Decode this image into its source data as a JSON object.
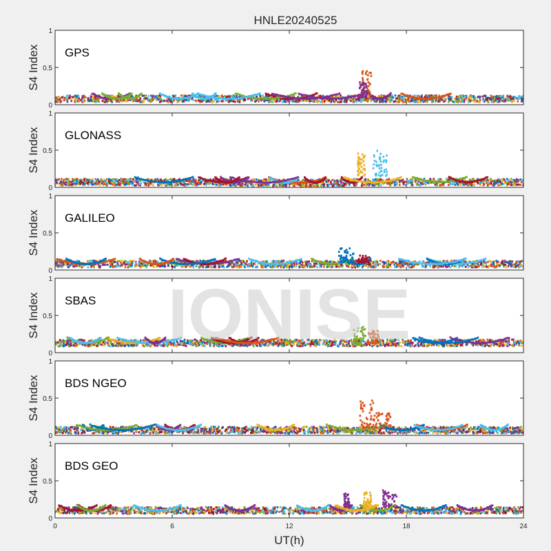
{
  "title": "HNLE20240525",
  "xlabel": "UT(h)",
  "ylabel": "S4 Index",
  "watermark": "IONISE",
  "colors": [
    "#0072bd",
    "#d95319",
    "#edb120",
    "#7e2f8e",
    "#77ac30",
    "#4dbeee",
    "#a2142f"
  ],
  "chart_data": [
    {
      "type": "scatter",
      "panel": "GPS",
      "xlim": [
        0,
        24
      ],
      "ylim": [
        0,
        1
      ],
      "xticks": [
        0,
        6,
        12,
        18,
        24
      ],
      "yticks": [
        0,
        0.5,
        1
      ],
      "baseline": [
        [
          0,
          0.08
        ],
        [
          6,
          0.08
        ],
        [
          12,
          0.08
        ],
        [
          18,
          0.08
        ],
        [
          24,
          0.08
        ]
      ],
      "bursts": [
        {
          "x": [
            15.7,
            16.2
          ],
          "y": [
            0.1,
            0.45
          ],
          "color": 1
        },
        {
          "x": [
            15.6,
            16.0
          ],
          "y": [
            0.1,
            0.3
          ],
          "color": 3
        }
      ]
    },
    {
      "type": "scatter",
      "panel": "GLONASS",
      "xlim": [
        0,
        24
      ],
      "ylim": [
        0,
        1
      ],
      "xticks": [
        0,
        6,
        12,
        18,
        24
      ],
      "yticks": [
        0,
        0.5,
        1
      ],
      "baseline": [
        [
          0,
          0.07
        ],
        [
          6,
          0.07
        ],
        [
          12,
          0.06
        ],
        [
          18,
          0.07
        ],
        [
          24,
          0.07
        ]
      ],
      "bursts": [
        {
          "x": [
            15.5,
            15.9
          ],
          "y": [
            0.15,
            0.48
          ],
          "color": 2
        },
        {
          "x": [
            16.3,
            17.0
          ],
          "y": [
            0.15,
            0.5
          ],
          "color": 5
        }
      ]
    },
    {
      "type": "scatter",
      "panel": "GALILEO",
      "xlim": [
        0,
        24
      ],
      "ylim": [
        0,
        1
      ],
      "xticks": [
        0,
        6,
        12,
        18,
        24
      ],
      "yticks": [
        0,
        0.5,
        1
      ],
      "baseline": [
        [
          0,
          0.08
        ],
        [
          6,
          0.08
        ],
        [
          12,
          0.08
        ],
        [
          18,
          0.08
        ],
        [
          24,
          0.08
        ]
      ],
      "bursts": [
        {
          "x": [
            14.5,
            15.3
          ],
          "y": [
            0.1,
            0.35
          ],
          "color": 0
        },
        {
          "x": [
            15.5,
            16.1
          ],
          "y": [
            0.1,
            0.2
          ],
          "color": 6
        }
      ]
    },
    {
      "type": "scatter",
      "panel": "SBAS",
      "xlim": [
        0,
        24
      ],
      "ylim": [
        0,
        1
      ],
      "xticks": [
        0,
        6,
        12,
        18,
        24
      ],
      "yticks": [
        0,
        0.5,
        1
      ],
      "baseline": [
        [
          0,
          0.13
        ],
        [
          6,
          0.13
        ],
        [
          12,
          0.13
        ],
        [
          18,
          0.13
        ],
        [
          24,
          0.13
        ]
      ],
      "bursts": [
        {
          "x": [
            15.3,
            15.9
          ],
          "y": [
            0.1,
            0.35
          ],
          "color": 4
        },
        {
          "x": [
            16.0,
            16.6
          ],
          "y": [
            0.12,
            0.3
          ],
          "color": 1
        }
      ]
    },
    {
      "type": "scatter",
      "panel": "BDS NGEO",
      "xlim": [
        0,
        24
      ],
      "ylim": [
        0,
        1
      ],
      "xticks": [
        0,
        6,
        12,
        18,
        24
      ],
      "yticks": [
        0,
        0.5,
        1
      ],
      "baseline": [
        [
          0,
          0.07
        ],
        [
          6,
          0.07
        ],
        [
          12,
          0.07
        ],
        [
          18,
          0.07
        ],
        [
          24,
          0.07
        ]
      ],
      "bursts": [
        {
          "x": [
            15.6,
            16.3
          ],
          "y": [
            0.1,
            0.47
          ],
          "color": 1
        },
        {
          "x": [
            16.3,
            17.2
          ],
          "y": [
            0.1,
            0.3
          ],
          "color": 1
        }
      ]
    },
    {
      "type": "scatter",
      "panel": "BDS GEO",
      "xlim": [
        0,
        24
      ],
      "ylim": [
        0,
        1
      ],
      "xticks": [
        0,
        6,
        12,
        18,
        24
      ],
      "yticks": [
        0,
        0.5,
        1
      ],
      "baseline": [
        [
          0,
          0.1
        ],
        [
          6,
          0.1
        ],
        [
          12,
          0.1
        ],
        [
          18,
          0.1
        ],
        [
          24,
          0.1
        ]
      ],
      "bursts": [
        {
          "x": [
            14.8,
            15.1
          ],
          "y": [
            0.15,
            0.33
          ],
          "color": 3
        },
        {
          "x": [
            15.8,
            16.2
          ],
          "y": [
            0.15,
            0.36
          ],
          "color": 2
        },
        {
          "x": [
            16.8,
            17.5
          ],
          "y": [
            0.15,
            0.38
          ],
          "color": 3
        }
      ]
    }
  ]
}
